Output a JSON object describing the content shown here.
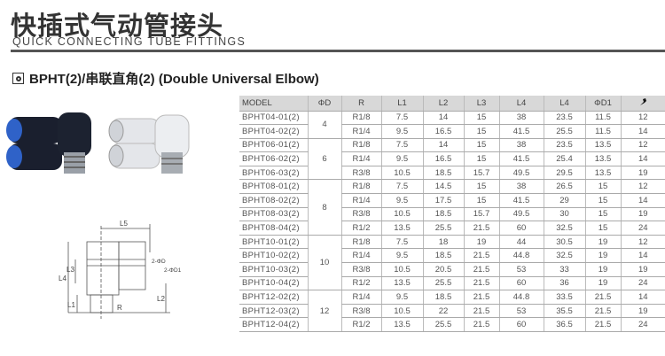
{
  "header": {
    "title": "快插式气动管接头",
    "subtitle": "QUICK CONNECTING TUBE FITTINGS"
  },
  "section": {
    "title": "BPHT(2)/串联直角(2) (Double Universal Elbow)",
    "icon": "target-square-icon"
  },
  "drawing": {
    "labels": [
      "L5",
      "L4",
      "L3",
      "L1",
      "L2",
      "R",
      "2-ΦD",
      "2-ΦD1"
    ]
  },
  "colors": {
    "fitting_body": "#1a1f2e",
    "collet": "#2f62c8",
    "fitting_white": "#e4e6ea"
  },
  "table": {
    "headers": [
      "MODEL",
      "ΦD",
      "R",
      "L1",
      "L2",
      "L3",
      "L4",
      "L4",
      "ΦD1",
      "wrench-icon"
    ],
    "groups": [
      {
        "d": "4",
        "rows": [
          [
            "BPHT04-01(2)",
            "R1/8",
            "7.5",
            "14",
            "15",
            "38",
            "23.5",
            "11.5",
            "12"
          ],
          [
            "BPHT04-02(2)",
            "R1/4",
            "9.5",
            "16.5",
            "15",
            "41.5",
            "25.5",
            "11.5",
            "14"
          ]
        ]
      },
      {
        "d": "6",
        "rows": [
          [
            "BPHT06-01(2)",
            "R1/8",
            "7.5",
            "14",
            "15",
            "38",
            "23.5",
            "13.5",
            "12"
          ],
          [
            "BPHT06-02(2)",
            "R1/4",
            "9.5",
            "16.5",
            "15",
            "41.5",
            "25.4",
            "13.5",
            "14"
          ],
          [
            "BPHT06-03(2)",
            "R3/8",
            "10.5",
            "18.5",
            "15.7",
            "49.5",
            "29.5",
            "13.5",
            "19"
          ]
        ]
      },
      {
        "d": "8",
        "rows": [
          [
            "BPHT08-01(2)",
            "R1/8",
            "7.5",
            "14.5",
            "15",
            "38",
            "26.5",
            "15",
            "12"
          ],
          [
            "BPHT08-02(2)",
            "R1/4",
            "9.5",
            "17.5",
            "15",
            "41.5",
            "29",
            "15",
            "14"
          ],
          [
            "BPHT08-03(2)",
            "R3/8",
            "10.5",
            "18.5",
            "15.7",
            "49.5",
            "30",
            "15",
            "19"
          ],
          [
            "BPHT08-04(2)",
            "R1/2",
            "13.5",
            "25.5",
            "21.5",
            "60",
            "32.5",
            "15",
            "24"
          ]
        ]
      },
      {
        "d": "10",
        "rows": [
          [
            "BPHT10-01(2)",
            "R1/8",
            "7.5",
            "18",
            "19",
            "44",
            "30.5",
            "19",
            "12"
          ],
          [
            "BPHT10-02(2)",
            "R1/4",
            "9.5",
            "18.5",
            "21.5",
            "44.8",
            "32.5",
            "19",
            "14"
          ],
          [
            "BPHT10-03(2)",
            "R3/8",
            "10.5",
            "20.5",
            "21.5",
            "53",
            "33",
            "19",
            "19"
          ],
          [
            "BPHT10-04(2)",
            "R1/2",
            "13.5",
            "25.5",
            "21.5",
            "60",
            "36",
            "19",
            "24"
          ]
        ]
      },
      {
        "d": "12",
        "rows": [
          [
            "BPHT12-02(2)",
            "R1/4",
            "9.5",
            "18.5",
            "21.5",
            "44.8",
            "33.5",
            "21.5",
            "14"
          ],
          [
            "BPHT12-03(2)",
            "R3/8",
            "10.5",
            "22",
            "21.5",
            "53",
            "35.5",
            "21.5",
            "19"
          ],
          [
            "BPHT12-04(2)",
            "R1/2",
            "13.5",
            "25.5",
            "21.5",
            "60",
            "36.5",
            "21.5",
            "24"
          ]
        ]
      }
    ]
  }
}
